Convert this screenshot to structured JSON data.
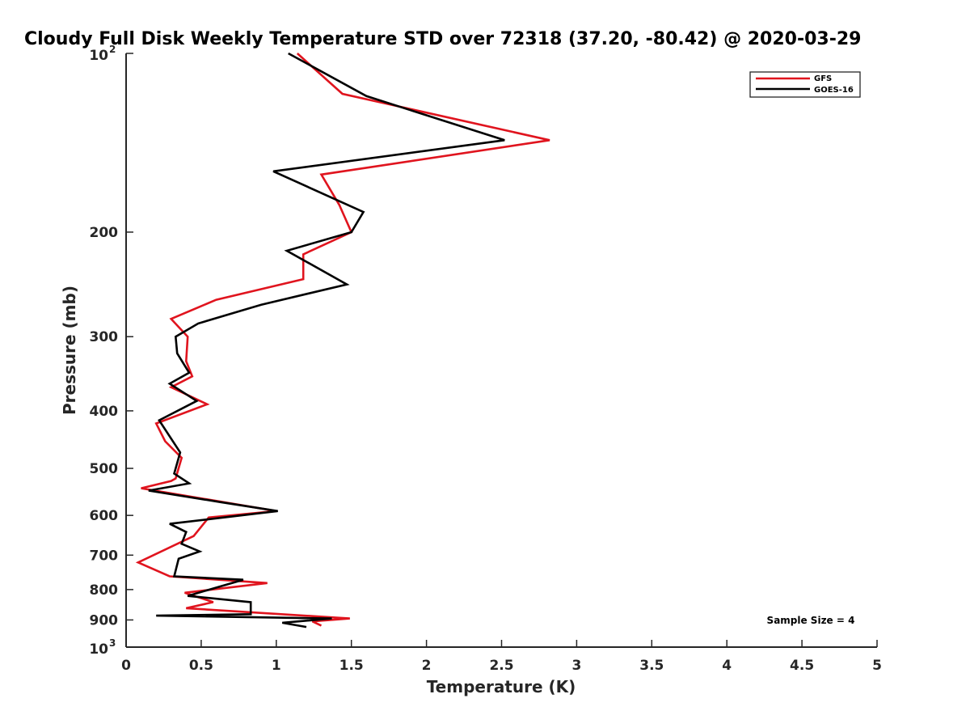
{
  "chart_data": {
    "type": "line",
    "title": "Cloudy Full Disk Weekly Temperature STD over 72318 (37.20, -80.42) @ 2020-03-29",
    "xlabel": "Temperature (K)",
    "ylabel": "Pressure (mb)",
    "xlim": [
      0,
      5
    ],
    "ylim": [
      100,
      1000
    ],
    "yscale": "log",
    "y_reversed": true,
    "grid": false,
    "legend_position": "top-right",
    "x_ticks": [
      0,
      0.5,
      1,
      1.5,
      2,
      2.5,
      3,
      3.5,
      4,
      4.5,
      5
    ],
    "x_tick_labels": [
      "0",
      "0.5",
      "1",
      "1.5",
      "2",
      "2.5",
      "3",
      "3.5",
      "4",
      "4.5",
      "5"
    ],
    "y_ticks": [
      {
        "value": 100,
        "base": "10",
        "exp": "2"
      },
      {
        "value": 200,
        "label": "200"
      },
      {
        "value": 300,
        "label": "300"
      },
      {
        "value": 400,
        "label": "400"
      },
      {
        "value": 500,
        "label": "500"
      },
      {
        "value": 600,
        "label": "600"
      },
      {
        "value": 700,
        "label": "700"
      },
      {
        "value": 800,
        "label": "800"
      },
      {
        "value": 900,
        "label": "900"
      },
      {
        "value": 1000,
        "base": "10",
        "exp": "3"
      }
    ],
    "series": [
      {
        "name": "GFS",
        "color": "#e0141e",
        "points": [
          [
            1.14,
            100
          ],
          [
            1.44,
            117
          ],
          [
            2.82,
            140
          ],
          [
            1.3,
            160
          ],
          [
            1.42,
            180
          ],
          [
            1.5,
            200
          ],
          [
            1.18,
            218
          ],
          [
            1.18,
            240
          ],
          [
            0.6,
            260
          ],
          [
            0.3,
            280
          ],
          [
            0.41,
            300
          ],
          [
            0.4,
            330
          ],
          [
            0.44,
            350
          ],
          [
            0.3,
            365
          ],
          [
            0.54,
            390
          ],
          [
            0.2,
            420
          ],
          [
            0.26,
            450
          ],
          [
            0.37,
            480
          ],
          [
            0.33,
            520
          ],
          [
            0.3,
            525
          ],
          [
            0.1,
            540
          ],
          [
            1.0,
            590
          ],
          [
            0.55,
            605
          ],
          [
            0.45,
            650
          ],
          [
            0.08,
            720
          ],
          [
            0.29,
            760
          ],
          [
            0.94,
            780
          ],
          [
            0.39,
            810
          ],
          [
            0.58,
            840
          ],
          [
            0.4,
            860
          ],
          [
            1.49,
            895
          ],
          [
            1.24,
            905
          ],
          [
            1.3,
            920
          ]
        ]
      },
      {
        "name": "GOES-16",
        "color": "#000000",
        "points": [
          [
            1.08,
            100
          ],
          [
            1.6,
            118
          ],
          [
            2.52,
            140
          ],
          [
            0.98,
            158
          ],
          [
            1.58,
            185
          ],
          [
            1.5,
            200
          ],
          [
            1.07,
            215
          ],
          [
            1.47,
            245
          ],
          [
            0.9,
            265
          ],
          [
            0.48,
            285
          ],
          [
            0.33,
            300
          ],
          [
            0.34,
            320
          ],
          [
            0.42,
            345
          ],
          [
            0.29,
            360
          ],
          [
            0.47,
            385
          ],
          [
            0.22,
            415
          ],
          [
            0.36,
            470
          ],
          [
            0.32,
            510
          ],
          [
            0.42,
            530
          ],
          [
            0.15,
            545
          ],
          [
            0.63,
            570
          ],
          [
            1.01,
            590
          ],
          [
            0.29,
            620
          ],
          [
            0.4,
            640
          ],
          [
            0.37,
            670
          ],
          [
            0.49,
            690
          ],
          [
            0.35,
            710
          ],
          [
            0.32,
            760
          ],
          [
            0.78,
            770
          ],
          [
            0.41,
            820
          ],
          [
            0.83,
            840
          ],
          [
            0.83,
            880
          ],
          [
            0.2,
            885
          ],
          [
            1.37,
            895
          ],
          [
            1.04,
            910
          ],
          [
            1.2,
            925
          ]
        ]
      }
    ],
    "annotation": "Sample Size = 4"
  }
}
